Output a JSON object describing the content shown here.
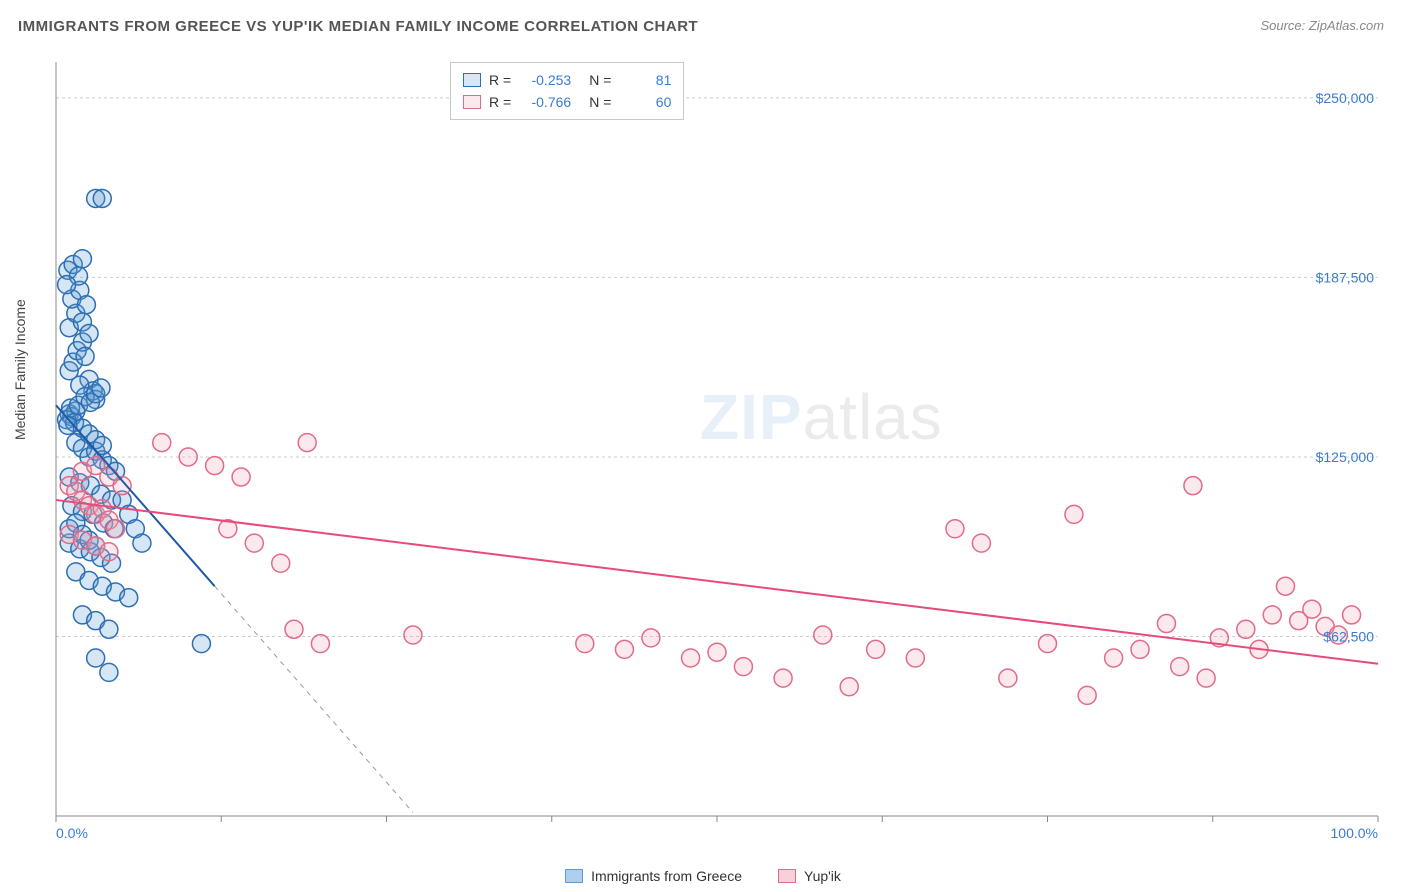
{
  "title": "IMMIGRANTS FROM GREECE VS YUP'IK MEDIAN FAMILY INCOME CORRELATION CHART",
  "source": "Source: ZipAtlas.com",
  "y_axis_label": "Median Family Income",
  "watermark_zip": "ZIP",
  "watermark_atlas": "atlas",
  "chart": {
    "type": "scatter",
    "xlim": [
      0,
      100
    ],
    "ylim": [
      0,
      262500
    ],
    "x_tick_positions": [
      0,
      12.5,
      25,
      37.5,
      50,
      62.5,
      75,
      87.5,
      100
    ],
    "x_tick_labels_shown": {
      "0": "0.0%",
      "100": "100.0%"
    },
    "y_gridlines": [
      62500,
      125000,
      187500,
      250000
    ],
    "y_tick_labels": {
      "62500": "$62,500",
      "125000": "$125,000",
      "187500": "$187,500",
      "250000": "$250,000"
    },
    "background_color": "#ffffff",
    "grid_color": "#cccccc",
    "grid_dash": "3,3",
    "axis_color": "#888888",
    "tick_label_color": "#3a7bd5",
    "marker_radius": 9,
    "marker_stroke_width": 1.5,
    "marker_fill_opacity": 0.25,
    "trendline_width": 2,
    "trendline_dash_extension": "5,5",
    "series": [
      {
        "name": "Immigrants from Greece",
        "color": "#5b9bd5",
        "stroke": "#2e6fb3",
        "trend_color": "#1f5aa8",
        "R": "-0.253",
        "N": "81",
        "trendline": {
          "x1": 0,
          "y1": 143000,
          "x2": 12,
          "y2": 80000,
          "extend_to_x": 27
        },
        "points": [
          [
            1,
            140000
          ],
          [
            1.2,
            139000
          ],
          [
            1.5,
            141000
          ],
          [
            0.8,
            138000
          ],
          [
            1.1,
            142000
          ],
          [
            1.4,
            137000
          ],
          [
            1.7,
            143000
          ],
          [
            0.9,
            136000
          ],
          [
            1,
            155000
          ],
          [
            1.3,
            158000
          ],
          [
            1.6,
            162000
          ],
          [
            2,
            165000
          ],
          [
            2.2,
            160000
          ],
          [
            2.5,
            152000
          ],
          [
            2.8,
            148000
          ],
          [
            3,
            145000
          ],
          [
            1,
            170000
          ],
          [
            1.5,
            175000
          ],
          [
            2,
            172000
          ],
          [
            2.5,
            168000
          ],
          [
            1.2,
            180000
          ],
          [
            1.8,
            183000
          ],
          [
            2.3,
            178000
          ],
          [
            0.9,
            190000
          ],
          [
            1.3,
            192000
          ],
          [
            1.7,
            188000
          ],
          [
            2,
            194000
          ],
          [
            0.8,
            185000
          ],
          [
            1.5,
            130000
          ],
          [
            2,
            128000
          ],
          [
            2.5,
            125000
          ],
          [
            3,
            127000
          ],
          [
            3.5,
            124000
          ],
          [
            4,
            122000
          ],
          [
            4.5,
            120000
          ],
          [
            1,
            118000
          ],
          [
            1.8,
            116000
          ],
          [
            2.6,
            115000
          ],
          [
            3.4,
            112000
          ],
          [
            4.2,
            110000
          ],
          [
            1.2,
            108000
          ],
          [
            2,
            106000
          ],
          [
            2.8,
            105000
          ],
          [
            3.6,
            102000
          ],
          [
            4.4,
            100000
          ],
          [
            1,
            95000
          ],
          [
            1.8,
            93000
          ],
          [
            2.6,
            92000
          ],
          [
            3.4,
            90000
          ],
          [
            4.2,
            88000
          ],
          [
            1.5,
            85000
          ],
          [
            2.5,
            82000
          ],
          [
            3.5,
            80000
          ],
          [
            4.5,
            78000
          ],
          [
            5.5,
            76000
          ],
          [
            2,
            70000
          ],
          [
            3,
            68000
          ],
          [
            4,
            65000
          ],
          [
            3,
            215000
          ],
          [
            3.5,
            215000
          ],
          [
            1,
            100000
          ],
          [
            1.5,
            102000
          ],
          [
            2,
            98000
          ],
          [
            2.5,
            96000
          ],
          [
            3,
            94000
          ],
          [
            2,
            135000
          ],
          [
            2.5,
            133000
          ],
          [
            3,
            131000
          ],
          [
            3.5,
            129000
          ],
          [
            5,
            110000
          ],
          [
            5.5,
            105000
          ],
          [
            6,
            100000
          ],
          [
            6.5,
            95000
          ],
          [
            3,
            55000
          ],
          [
            11,
            60000
          ],
          [
            4,
            50000
          ],
          [
            1.8,
            150000
          ],
          [
            2.2,
            146000
          ],
          [
            2.6,
            144000
          ],
          [
            3,
            147000
          ],
          [
            3.4,
            149000
          ]
        ]
      },
      {
        "name": "Yup'ik",
        "color": "#f4a6b8",
        "stroke": "#e26b88",
        "trend_color": "#e84a7a",
        "R": "-0.766",
        "N": "60",
        "trendline": {
          "x1": 0,
          "y1": 110000,
          "x2": 100,
          "y2": 53000
        },
        "points": [
          [
            1,
            115000
          ],
          [
            1.5,
            113000
          ],
          [
            2,
            110000
          ],
          [
            2.5,
            108000
          ],
          [
            3,
            105000
          ],
          [
            3.5,
            107000
          ],
          [
            4,
            103000
          ],
          [
            4.5,
            100000
          ],
          [
            2,
            120000
          ],
          [
            3,
            122000
          ],
          [
            4,
            118000
          ],
          [
            5,
            115000
          ],
          [
            1,
            98000
          ],
          [
            2,
            96000
          ],
          [
            3,
            94000
          ],
          [
            4,
            92000
          ],
          [
            8,
            130000
          ],
          [
            10,
            125000
          ],
          [
            12,
            122000
          ],
          [
            14,
            118000
          ],
          [
            19,
            130000
          ],
          [
            13,
            100000
          ],
          [
            15,
            95000
          ],
          [
            17,
            88000
          ],
          [
            18,
            65000
          ],
          [
            20,
            60000
          ],
          [
            27,
            63000
          ],
          [
            40,
            60000
          ],
          [
            43,
            58000
          ],
          [
            45,
            62000
          ],
          [
            48,
            55000
          ],
          [
            50,
            57000
          ],
          [
            52,
            52000
          ],
          [
            55,
            48000
          ],
          [
            58,
            63000
          ],
          [
            60,
            45000
          ],
          [
            62,
            58000
          ],
          [
            65,
            55000
          ],
          [
            68,
            100000
          ],
          [
            70,
            95000
          ],
          [
            72,
            48000
          ],
          [
            75,
            60000
          ],
          [
            77,
            105000
          ],
          [
            78,
            42000
          ],
          [
            80,
            55000
          ],
          [
            82,
            58000
          ],
          [
            84,
            67000
          ],
          [
            85,
            52000
          ],
          [
            86,
            115000
          ],
          [
            87,
            48000
          ],
          [
            88,
            62000
          ],
          [
            90,
            65000
          ],
          [
            91,
            58000
          ],
          [
            92,
            70000
          ],
          [
            93,
            80000
          ],
          [
            94,
            68000
          ],
          [
            95,
            72000
          ],
          [
            96,
            66000
          ],
          [
            97,
            63000
          ],
          [
            98,
            70000
          ]
        ]
      }
    ]
  },
  "legend_bottom": {
    "items": [
      {
        "label": "Immigrants from Greece",
        "fill": "#aed0ee",
        "stroke": "#5b9bd5"
      },
      {
        "label": "Yup'ik",
        "fill": "#f9cfd9",
        "stroke": "#e26b88"
      }
    ]
  }
}
